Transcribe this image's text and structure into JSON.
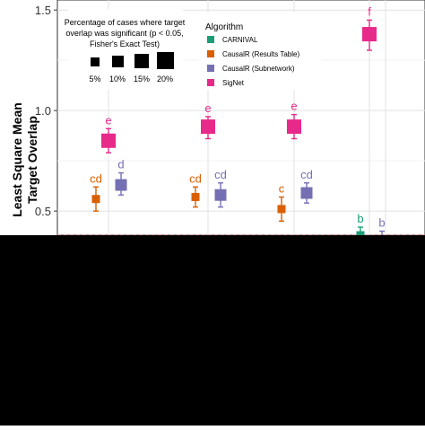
{
  "chart_data": {
    "type": "scatter",
    "ylabel_lines": [
      "Least Square Mean",
      "Target Overlap"
    ],
    "yticks": [
      0.5,
      1.0,
      1.5
    ],
    "ytick_labels": [
      "0.5",
      "1.0",
      "1.5"
    ],
    "ylim": [
      0.38,
      1.55
    ],
    "grid": true,
    "reference_line": {
      "y": 0.38,
      "style": "dashed",
      "color": "#e07070"
    },
    "groups": 5,
    "series": [
      {
        "name": "CARNIVAL",
        "color": "#1b9e77",
        "points": [
          {
            "group": 4,
            "y": 0.38,
            "low": 0.34,
            "high": 0.42,
            "label": "b",
            "size": "5%"
          }
        ]
      },
      {
        "name": "CausalR (Results Table)",
        "color": "#d95f02",
        "points": [
          {
            "group": 1,
            "y": 0.56,
            "low": 0.5,
            "high": 0.62,
            "label": "cd",
            "size": "5%"
          },
          {
            "group": 2,
            "y": 0.57,
            "low": 0.52,
            "high": 0.62,
            "label": "cd",
            "size": "5%"
          },
          {
            "group": 3,
            "y": 0.51,
            "low": 0.45,
            "high": 0.57,
            "label": "c",
            "size": "5%"
          }
        ]
      },
      {
        "name": "CausalR (Subnetwork)",
        "color": "#7570b3",
        "points": [
          {
            "group": 1,
            "y": 0.63,
            "low": 0.58,
            "high": 0.69,
            "label": "d",
            "size": "10%"
          },
          {
            "group": 2,
            "y": 0.58,
            "low": 0.52,
            "high": 0.64,
            "label": "cd",
            "size": "10%"
          },
          {
            "group": 3,
            "y": 0.59,
            "low": 0.54,
            "high": 0.64,
            "label": "cd",
            "size": "10%"
          },
          {
            "group": 4,
            "y": 0.36,
            "low": 0.33,
            "high": 0.4,
            "label": "b",
            "size": "5%"
          }
        ]
      },
      {
        "name": "SigNet",
        "color": "#e7298a",
        "points": [
          {
            "group": 1,
            "y": 0.85,
            "low": 0.79,
            "high": 0.91,
            "label": "e",
            "size": "15%"
          },
          {
            "group": 2,
            "y": 0.92,
            "low": 0.86,
            "high": 0.97,
            "label": "e",
            "size": "15%"
          },
          {
            "group": 3,
            "y": 0.92,
            "low": 0.86,
            "high": 0.98,
            "label": "e",
            "size": "15%"
          },
          {
            "group": 4,
            "y": 1.38,
            "low": 1.3,
            "high": 1.45,
            "label": "f",
            "size": "15%"
          }
        ]
      }
    ],
    "size_legend": {
      "title_lines": [
        "Percentage of cases where target",
        "overlap was significant (p < 0.05,",
        "Fisher's Exact Test)"
      ],
      "entries": [
        "5%",
        "10%",
        "15%",
        "20%"
      ]
    },
    "color_legend": {
      "title": "Algorithm",
      "entries": [
        {
          "label": "CARNIVAL",
          "color": "#1b9e77"
        },
        {
          "label": "CausalR (Results Table)",
          "color": "#d95f02"
        },
        {
          "label": "CausalR (Subnetwork)",
          "color": "#7570b3"
        },
        {
          "label": "SigNet",
          "color": "#e7298a"
        }
      ]
    }
  }
}
